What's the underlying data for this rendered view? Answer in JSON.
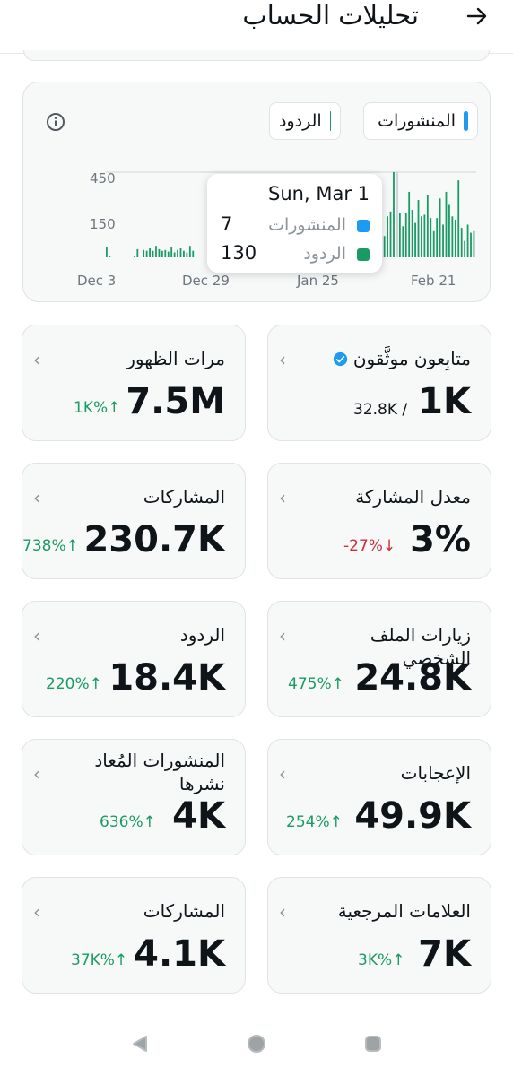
{
  "header": {
    "title": "تحليلات الحساب",
    "back_icon": "arrow-right-icon"
  },
  "chart": {
    "legend": [
      {
        "label": "المنشورات",
        "color": "#1d9bf0"
      },
      {
        "label": "الردود",
        "color": "#1a9b64"
      }
    ],
    "tooltip": {
      "date": "Sun, Mar 1",
      "rows": [
        {
          "label": "المنشورات",
          "value": "7",
          "color": "#1d9bf0"
        },
        {
          "label": "الردود",
          "value": "130",
          "color": "#1a9b64"
        }
      ]
    }
  },
  "chart_data": {
    "type": "bar",
    "x_ticks": [
      "Dec 3",
      "Dec 29",
      "Jan 25",
      "Feb 21"
    ],
    "y_ticks": [
      "450",
      "150"
    ],
    "series": [
      {
        "name": "المنشورات",
        "color": "#1d9bf0"
      },
      {
        "name": "الردود",
        "color": "#1a9b64",
        "values": [
          60,
          5,
          0,
          0,
          0,
          0,
          0,
          0,
          0,
          5,
          50,
          0,
          45,
          40,
          55,
          40,
          70,
          50,
          40,
          45,
          35,
          60,
          30,
          45,
          55,
          40,
          30,
          70,
          40,
          0,
          0,
          0,
          0,
          0,
          0,
          0,
          0,
          0,
          0,
          0,
          0,
          0,
          0,
          0,
          0,
          0,
          0,
          0,
          0,
          0,
          0,
          0,
          0,
          0,
          0,
          0,
          0,
          0,
          0,
          0,
          0,
          0,
          0,
          0,
          0,
          0,
          0,
          0,
          0,
          0,
          0,
          0,
          0,
          0,
          0,
          0,
          0,
          0,
          0,
          0,
          0,
          0,
          0,
          0,
          0,
          0,
          0,
          0,
          0,
          0,
          130,
          250,
          280,
          520,
          230,
          270,
          190,
          270,
          400,
          290,
          210,
          350,
          250,
          260,
          380,
          240,
          160,
          240,
          360,
          200,
          400,
          320,
          250,
          230,
          470,
          180,
          100,
          200,
          150,
          160
        ]
      }
    ]
  },
  "metrics": [
    {
      "label": "متابِعون موثَّقون",
      "value": "1K",
      "sub": "32.8K /",
      "change": "",
      "direction": "",
      "verified": true
    },
    {
      "label": "مرات الظهور",
      "value": "7.5M",
      "change": "1K%↑",
      "direction": "up"
    },
    {
      "label": "معدل المشاركة",
      "value": "3%",
      "change": "-27%↓",
      "direction": "down"
    },
    {
      "label": "المشاركات",
      "value": "230.7K",
      "change": "738%↑",
      "direction": "up"
    },
    {
      "label": "زيارات الملف الشخصي",
      "value": "24.8K",
      "change": "475%↑",
      "direction": "up"
    },
    {
      "label": "الردود",
      "value": "18.4K",
      "change": "220%↑",
      "direction": "up"
    },
    {
      "label": "الإعجابات",
      "value": "49.9K",
      "change": "254%↑",
      "direction": "up"
    },
    {
      "label": "المنشورات المُعاد نشرها",
      "value": "4K",
      "change": "636%↑",
      "direction": "up"
    },
    {
      "label": "العلامات المرجعية",
      "value": "7K",
      "change": "3K%↑",
      "direction": "up"
    },
    {
      "label": "المشاركات",
      "value": "4.1K",
      "change": "37K%↑",
      "direction": "up"
    }
  ],
  "navbar": {
    "icons": [
      "back-triangle-icon",
      "home-circle-icon",
      "recents-square-icon"
    ]
  }
}
